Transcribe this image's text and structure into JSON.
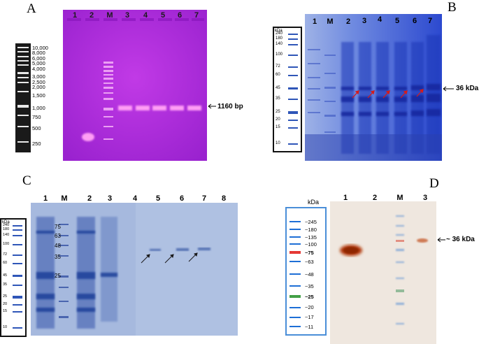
{
  "panels": {
    "a": {
      "letter": "A",
      "lanes": [
        "1",
        "2",
        "M",
        "3",
        "4",
        "5",
        "6",
        "7"
      ],
      "ladder": [
        "10,000",
        "8,000",
        "6,000",
        "5,000",
        "4,000",
        "3,000",
        "2,500",
        "2,000",
        "1,500",
        "1,000",
        "750",
        "500",
        "250"
      ],
      "annotation": "1160 bp",
      "colors": {
        "gel": "#a62ad6",
        "band": "#ffb0ff"
      }
    },
    "b": {
      "letter": "B",
      "lanes": [
        "1",
        "M",
        "2",
        "3",
        "4",
        "5",
        "6",
        "7"
      ],
      "unit": "kDa",
      "ladder": [
        "240",
        "180",
        "140",
        "100",
        "72",
        "60",
        "45",
        "35",
        "25",
        "20",
        "15",
        "10"
      ],
      "annotation": "36 kDa",
      "colors": {
        "gel": "#3f5ed6",
        "arrow": "#d41c1c"
      }
    },
    "c": {
      "letter": "C",
      "lanes": [
        "1",
        "M",
        "2",
        "3",
        "4",
        "5",
        "6",
        "7",
        "8"
      ],
      "unit": "kDa",
      "ladder": [
        "240",
        "180",
        "140",
        "100",
        "72",
        "60",
        "45",
        "35",
        "25",
        "20",
        "15",
        "10"
      ],
      "marker_labels": [
        "75",
        "63",
        "48",
        "35",
        "25"
      ],
      "colors": {
        "gel": "#9fb3dc",
        "band": "#2d4fa0"
      }
    },
    "d": {
      "letter": "D",
      "lanes": [
        "1",
        "2",
        "M",
        "3"
      ],
      "unit": "kDa",
      "ladder": [
        "~245",
        "~180",
        "~135",
        "~100",
        "~75",
        "~63",
        "~48",
        "~35",
        "~25",
        "~20",
        "~17",
        "~11"
      ],
      "annotation": "~ 36 kDa",
      "colors": {
        "membrane": "#efe7df",
        "band": "#b23a10",
        "ladder_red": "#e53935",
        "ladder_green": "#43a047",
        "ladder_blue": "#1e6fd6"
      }
    }
  }
}
